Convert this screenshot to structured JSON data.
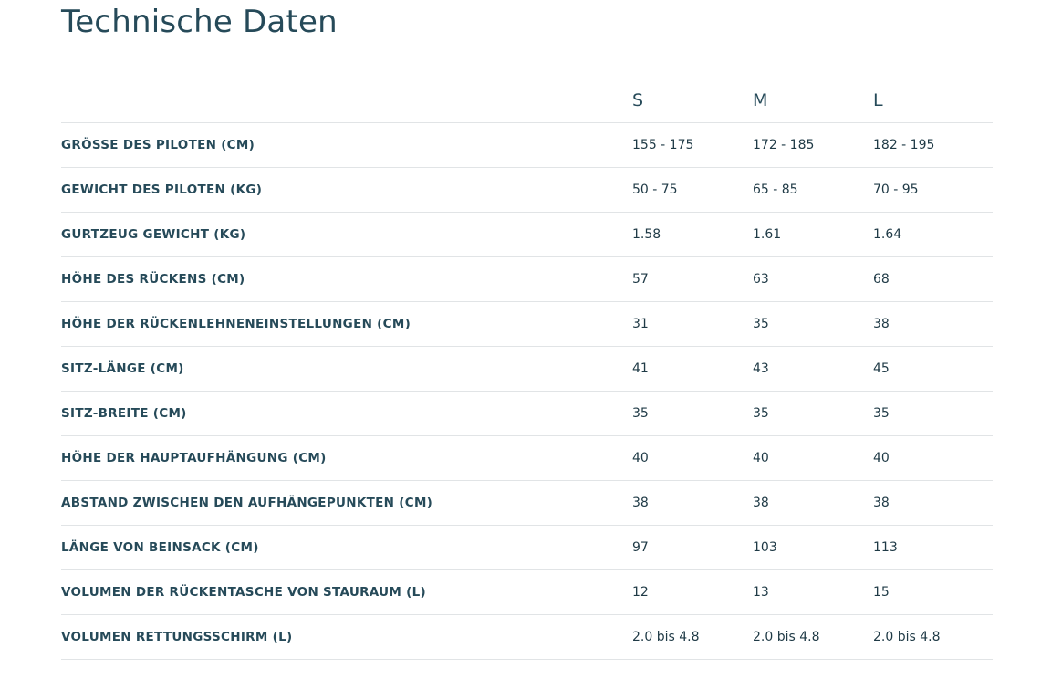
{
  "page": {
    "title": "Technische Daten"
  },
  "table": {
    "header": {
      "label": "",
      "sizes": [
        "S",
        "M",
        "L"
      ]
    },
    "rows": [
      {
        "label": "GRÖSSE DES PILOTEN (CM)",
        "s": "155 - 175",
        "m": "172 - 185",
        "l": "182 - 195"
      },
      {
        "label": "GEWICHT DES PILOTEN (KG)",
        "s": "50 - 75",
        "m": "65 - 85",
        "l": "70 - 95"
      },
      {
        "label": "GURTZEUG GEWICHT (KG)",
        "s": "1.58",
        "m": "1.61",
        "l": "1.64"
      },
      {
        "label": "HÖHE DES RÜCKENS (CM)",
        "s": "57",
        "m": "63",
        "l": "68"
      },
      {
        "label": "HÖHE DER RÜCKENLEHNENEINSTELLUNGEN (CM)",
        "s": "31",
        "m": "35",
        "l": "38"
      },
      {
        "label": "SITZ-LÄNGE (CM)",
        "s": "41",
        "m": "43",
        "l": "45"
      },
      {
        "label": "SITZ-BREITE (CM)",
        "s": "35",
        "m": "35",
        "l": "35"
      },
      {
        "label": "HÖHE DER HAUPTAUFHÄNGUNG (CM)",
        "s": "40",
        "m": "40",
        "l": "40"
      },
      {
        "label": "ABSTAND ZWISCHEN DEN AUFHÄNGEPUNKTEN (CM)",
        "s": "38",
        "m": "38",
        "l": "38"
      },
      {
        "label": "LÄNGE VON BEINSACK (CM)",
        "s": "97",
        "m": "103",
        "l": "113"
      },
      {
        "label": "VOLUMEN DER RÜCKENTASCHE VON STAURAUM (L)",
        "s": "12",
        "m": "13",
        "l": "15"
      },
      {
        "label": "VOLUMEN RETTUNGSSCHIRM (L)",
        "s": "2.0 bis 4.8",
        "m": "2.0 bis 4.8",
        "l": "2.0 bis 4.8"
      }
    ]
  },
  "colors": {
    "heading": "#264a59",
    "text": "#1f3a46",
    "divider": "#e1e4e6",
    "background": "#ffffff"
  }
}
